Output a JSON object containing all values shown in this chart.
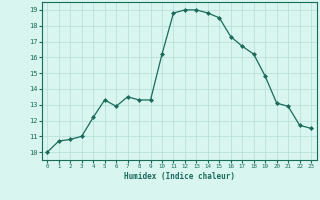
{
  "x": [
    0,
    1,
    2,
    3,
    4,
    5,
    6,
    7,
    8,
    9,
    10,
    11,
    12,
    13,
    14,
    15,
    16,
    17,
    18,
    19,
    20,
    21,
    22,
    23
  ],
  "y": [
    10.0,
    10.7,
    10.8,
    11.0,
    12.2,
    13.3,
    12.9,
    13.5,
    13.3,
    13.3,
    16.2,
    18.8,
    19.0,
    19.0,
    18.8,
    18.5,
    17.3,
    16.7,
    16.2,
    14.8,
    13.1,
    12.9,
    11.7,
    11.5
  ],
  "xlabel": "Humidex (Indice chaleur)",
  "xlim": [
    -0.5,
    23.5
  ],
  "ylim": [
    9.5,
    19.5
  ],
  "yticks": [
    10,
    11,
    12,
    13,
    14,
    15,
    16,
    17,
    18,
    19
  ],
  "xticks": [
    0,
    1,
    2,
    3,
    4,
    5,
    6,
    7,
    8,
    9,
    10,
    11,
    12,
    13,
    14,
    15,
    16,
    17,
    18,
    19,
    20,
    21,
    22,
    23
  ],
  "line_color": "#1a6b5a",
  "marker_color": "#1a6b5a",
  "bg_color": "#d8f5f0",
  "grid_color": "#b5ddd8",
  "axis_color": "#1a6b5a",
  "tick_color": "#1a6b5a",
  "label_color": "#1a6b5a"
}
